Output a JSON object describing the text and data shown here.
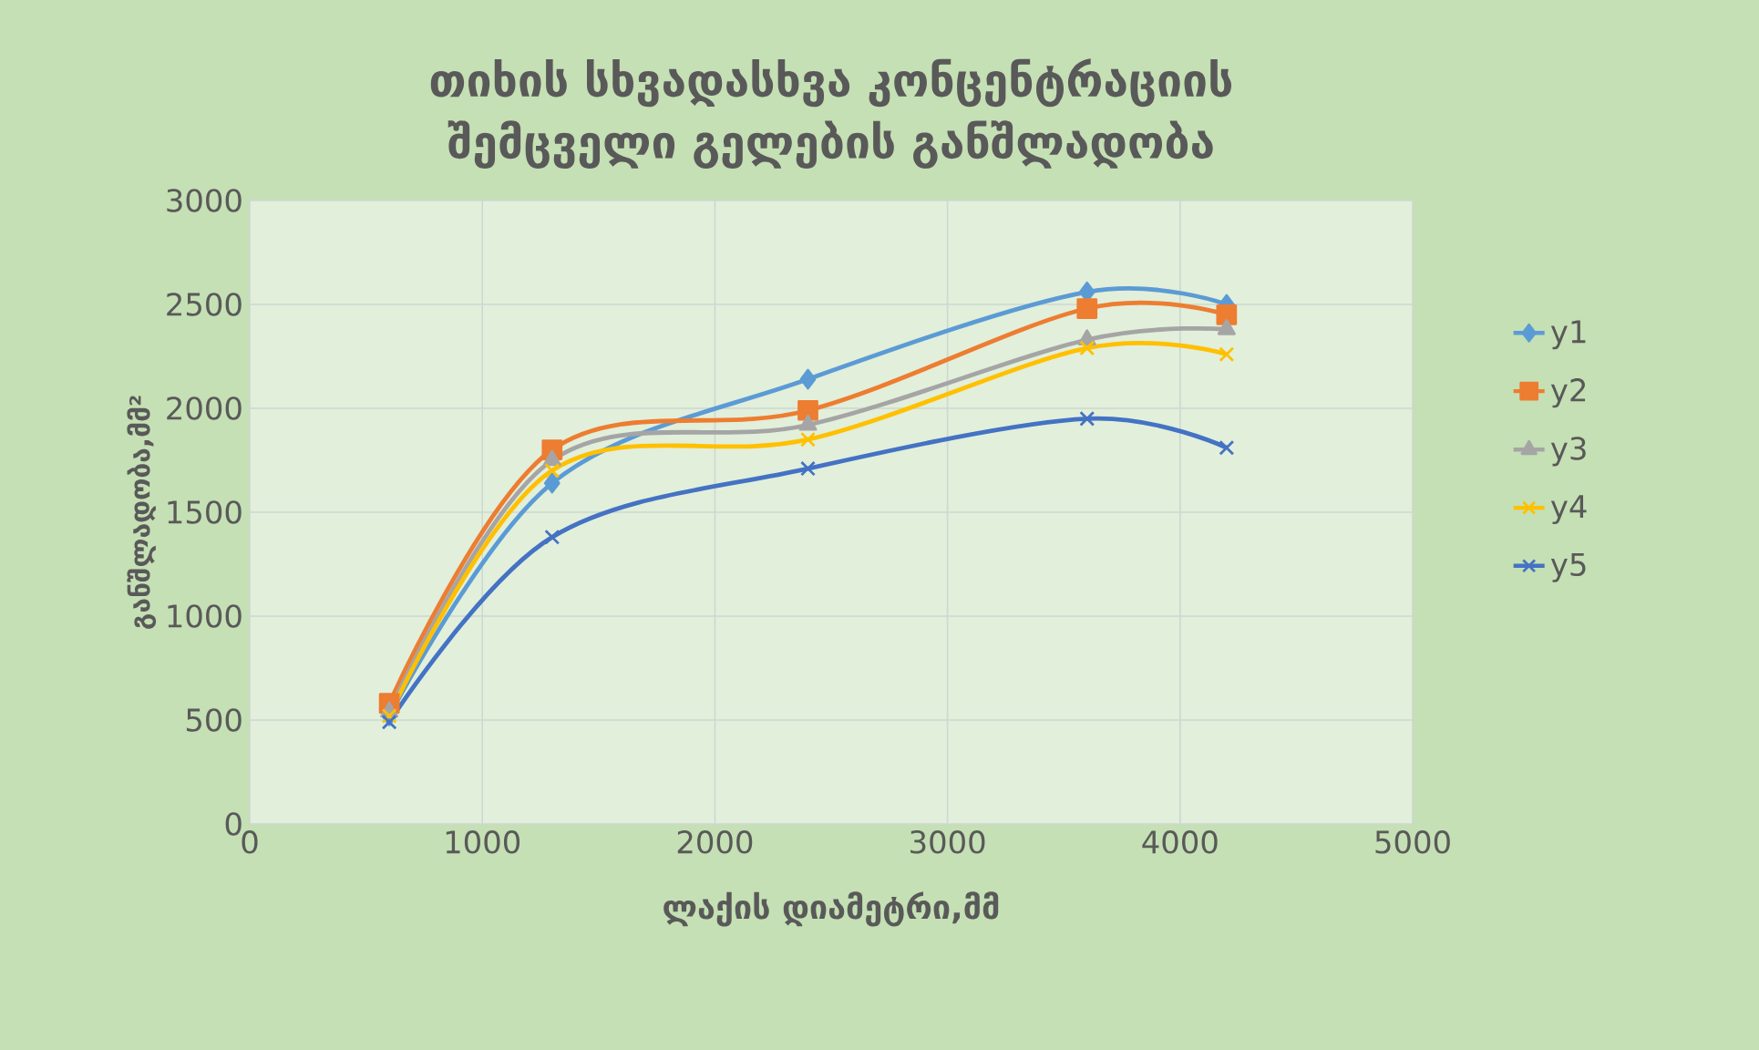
{
  "chart_data": {
    "type": "line",
    "title": "თიხის სხვადასხვა კონცენტრაციის შემცველი გელების განშლადობა",
    "xlabel": "ლაქის დიამეტრი,მმ",
    "ylabel": "განშლადობა,მმ²",
    "x": [
      600,
      1300,
      2400,
      3600,
      4200
    ],
    "series": [
      {
        "name": "y1",
        "color": "#5b9bd5",
        "marker": "diamond",
        "values": [
          520,
          1640,
          2140,
          2560,
          2500
        ]
      },
      {
        "name": "y2",
        "color": "#ed7d31",
        "marker": "square",
        "values": [
          580,
          1800,
          1990,
          2480,
          2450
        ]
      },
      {
        "name": "y3",
        "color": "#a5a5a5",
        "marker": "triangle",
        "values": [
          540,
          1750,
          1920,
          2330,
          2380
        ]
      },
      {
        "name": "y4",
        "color": "#ffc000",
        "marker": "cross",
        "values": [
          520,
          1700,
          1850,
          2290,
          2260
        ]
      },
      {
        "name": "y5",
        "color": "#4472c4",
        "marker": "cross",
        "values": [
          490,
          1380,
          1710,
          1950,
          1810
        ]
      }
    ],
    "xlim": [
      0,
      5000
    ],
    "ylim": [
      0,
      3000
    ],
    "xticks": [
      0,
      1000,
      2000,
      3000,
      4000,
      5000
    ],
    "yticks": [
      0,
      500,
      1000,
      1500,
      2000,
      2500,
      3000
    ],
    "grid": true,
    "legend": "right",
    "line_style": "solid"
  }
}
